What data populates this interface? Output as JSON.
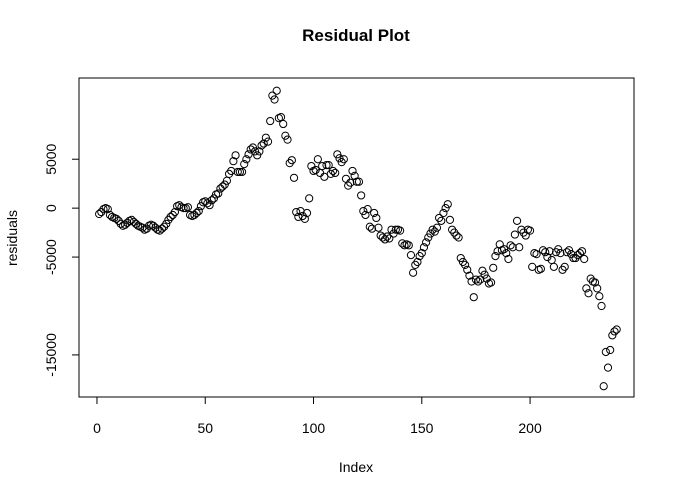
{
  "chart_data": {
    "type": "scatter",
    "title": "Residual Plot",
    "x_label": "Index",
    "y_label": "residuals",
    "x": [
      1,
      2,
      3,
      4,
      5,
      6,
      7,
      8,
      9,
      10,
      11,
      12,
      13,
      14,
      15,
      16,
      17,
      18,
      19,
      20,
      21,
      22,
      23,
      24,
      25,
      26,
      27,
      28,
      29,
      30,
      31,
      32,
      33,
      34,
      35,
      36,
      37,
      38,
      39,
      40,
      41,
      42,
      43,
      44,
      45,
      46,
      47,
      48,
      49,
      50,
      51,
      52,
      53,
      54,
      55,
      56,
      57,
      58,
      59,
      60,
      61,
      62,
      63,
      64,
      65,
      66,
      67,
      68,
      69,
      70,
      71,
      72,
      73,
      74,
      75,
      76,
      77,
      78,
      79,
      80,
      81,
      82,
      83,
      84,
      85,
      86,
      87,
      88,
      89,
      90,
      91,
      92,
      93,
      94,
      95,
      96,
      97,
      98,
      99,
      100,
      101,
      102,
      103,
      104,
      105,
      106,
      107,
      108,
      109,
      110,
      111,
      112,
      113,
      114,
      115,
      116,
      117,
      118,
      119,
      120,
      121,
      122,
      123,
      124,
      125,
      126,
      127,
      128,
      129,
      130,
      131,
      132,
      133,
      134,
      135,
      136,
      137,
      138,
      139,
      140,
      141,
      142,
      143,
      144,
      145,
      146,
      147,
      148,
      149,
      150,
      151,
      152,
      153,
      154,
      155,
      156,
      157,
      158,
      159,
      160,
      161,
      162,
      163,
      164,
      165,
      166,
      167,
      168,
      169,
      170,
      171,
      172,
      173,
      174,
      175,
      176,
      177,
      178,
      179,
      180,
      181,
      182,
      183,
      184,
      185,
      186,
      187,
      188,
      189,
      190,
      191,
      192,
      193,
      194,
      195,
      196,
      197,
      198,
      199,
      200,
      201,
      202,
      203,
      204,
      205,
      206,
      207,
      208,
      209,
      210,
      211,
      212,
      213,
      214,
      215,
      216,
      217,
      218,
      219,
      220,
      221,
      222,
      223,
      224,
      225,
      226,
      227,
      228,
      229,
      230,
      231,
      232,
      233,
      234,
      235,
      236,
      237,
      238,
      239,
      240
    ],
    "values": [
      -600,
      -400,
      -100,
      0,
      -100,
      -700,
      -900,
      -1000,
      -1100,
      -1300,
      -1600,
      -1800,
      -1700,
      -1500,
      -1300,
      -1200,
      -1400,
      -1600,
      -1800,
      -1900,
      -2000,
      -2200,
      -2100,
      -1800,
      -1700,
      -1800,
      -2000,
      -2200,
      -2300,
      -2100,
      -1900,
      -1600,
      -1200,
      -900,
      -700,
      -400,
      200,
      300,
      100,
      0,
      0,
      100,
      -700,
      -800,
      -700,
      -500,
      -300,
      200,
      600,
      700,
      500,
      300,
      800,
      1000,
      1400,
      1500,
      2000,
      2200,
      2400,
      2800,
      3500,
      3800,
      4800,
      5400,
      3700,
      3700,
      3700,
      4500,
      5000,
      5500,
      6000,
      6200,
      5800,
      5400,
      5800,
      6400,
      6600,
      7200,
      6800,
      8900,
      11500,
      11100,
      12000,
      9200,
      9300,
      8600,
      7400,
      7000,
      4600,
      4900,
      3100,
      -400,
      -900,
      -300,
      -800,
      -1100,
      -500,
      1000,
      4300,
      3800,
      3900,
      5000,
      3600,
      4300,
      3200,
      4400,
      4400,
      3500,
      3800,
      3600,
      5500,
      5100,
      4700,
      5000,
      3000,
      2300,
      2600,
      3800,
      3300,
      2700,
      2700,
      1300,
      -300,
      -700,
      -100,
      -1900,
      -2100,
      -500,
      -1000,
      -2000,
      -2800,
      -3000,
      -3200,
      -2900,
      -3100,
      -2200,
      -2600,
      -2200,
      -2200,
      -2300,
      -3600,
      -3800,
      -3700,
      -3800,
      -4800,
      -6600,
      -5800,
      -5500,
      -4900,
      -4600,
      -4000,
      -3500,
      -3000,
      -2600,
      -2200,
      -2400,
      -2000,
      -1000,
      -1300,
      -500,
      0,
      400,
      -1200,
      -2200,
      -2500,
      -2800,
      -3000,
      -5100,
      -5500,
      -5800,
      -6300,
      -6900,
      -7500,
      -9100,
      -7300,
      -7500,
      -7300,
      -6400,
      -6800,
      -7200,
      -7700,
      -7600,
      -6100,
      -4900,
      -4400,
      -3700,
      -4300,
      -4200,
      -4600,
      -5200,
      -3800,
      -4000,
      -2700,
      -1300,
      -4000,
      -2200,
      -2500,
      -2800,
      -2200,
      -2300,
      -6000,
      -4600,
      -4700,
      -6300,
      -6200,
      -4300,
      -4500,
      -5000,
      -4400,
      -5300,
      -6000,
      -4500,
      -4200,
      -4600,
      -6300,
      -6000,
      -4500,
      -4300,
      -4700,
      -5100,
      -5100,
      -4800,
      -4600,
      -4400,
      -5200,
      -8200,
      -8700,
      -7200,
      -7500,
      -7600,
      -8200,
      -9000,
      -10000,
      -18200,
      -14700,
      -16300,
      -14500,
      -13000,
      -12600,
      -12400
    ],
    "xlim": [
      -8.3,
      248
    ],
    "ylim": [
      -19300,
      13300
    ],
    "xticks": [
      0,
      50,
      100,
      150,
      200
    ],
    "yticks": [
      -15000,
      -5000,
      0,
      5000
    ],
    "color": "#000000"
  }
}
